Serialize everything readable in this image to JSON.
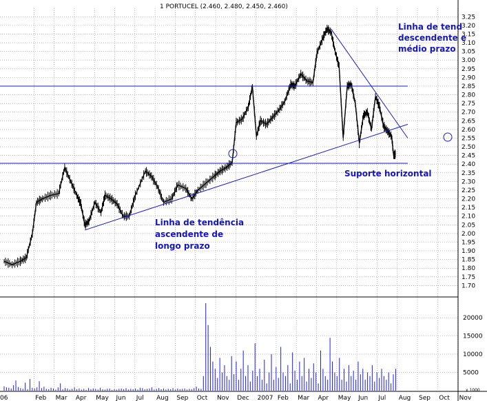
{
  "chart_data": {
    "type": "line",
    "title": "1 PORTUCEL (2.460, 2.480, 2.450, 2.460)",
    "price_axis": {
      "ylim": [
        1.65,
        3.275
      ],
      "ticks": [
        "3.25",
        "3.20",
        "3.15",
        "3.10",
        "3.05",
        "3.00",
        "2.95",
        "2.90",
        "2.85",
        "2.80",
        "2.75",
        "2.70",
        "2.65",
        "2.60",
        "2.55",
        "2.50",
        "2.45",
        "2.40",
        "2.35",
        "2.30",
        "2.25",
        "2.20",
        "2.15",
        "2.10",
        "2.05",
        "2.00",
        "1.95",
        "1.90",
        "1.85",
        "1.80",
        "1.75",
        "1.70"
      ]
    },
    "volume_axis": {
      "ylim": [
        0,
        24000
      ],
      "ticks": [
        "20000",
        "15000",
        "10000",
        "5000"
      ],
      "unit_label": "x 1000"
    },
    "months": [
      "06",
      "Feb",
      "Mar",
      "Apr",
      "May",
      "Jun",
      "Jul",
      "Aug",
      "Sep",
      "Oct",
      "Nov",
      "Dec",
      "2007",
      "Feb",
      "Mar",
      "Apr",
      "May",
      "Jun",
      "Jul",
      "Aug",
      "Sep",
      "Oct",
      "Nov"
    ],
    "price_series": {
      "name": "",
      "points": [
        [
          0,
          1.84
        ],
        [
          0.4,
          1.82
        ],
        [
          0.8,
          1.84
        ],
        [
          1.1,
          1.86
        ],
        [
          1.4,
          2.0
        ],
        [
          1.6,
          2.18
        ],
        [
          1.9,
          2.2
        ],
        [
          2.3,
          2.22
        ],
        [
          2.7,
          2.23
        ],
        [
          3.0,
          2.38
        ],
        [
          3.3,
          2.3
        ],
        [
          3.6,
          2.22
        ],
        [
          3.8,
          2.17
        ],
        [
          4.0,
          2.05
        ],
        [
          4.2,
          2.07
        ],
        [
          4.5,
          2.18
        ],
        [
          4.8,
          2.12
        ],
        [
          5.0,
          2.22
        ],
        [
          5.3,
          2.2
        ],
        [
          5.6,
          2.17
        ],
        [
          5.9,
          2.1
        ],
        [
          6.2,
          2.1
        ],
        [
          6.5,
          2.22
        ],
        [
          7.0,
          2.36
        ],
        [
          7.3,
          2.33
        ],
        [
          7.6,
          2.27
        ],
        [
          7.9,
          2.18
        ],
        [
          8.3,
          2.2
        ],
        [
          8.6,
          2.28
        ],
        [
          9.0,
          2.26
        ],
        [
          9.3,
          2.2
        ],
        [
          9.6,
          2.25
        ],
        [
          10.0,
          2.29
        ],
        [
          10.4,
          2.33
        ],
        [
          10.7,
          2.36
        ],
        [
          11.0,
          2.38
        ],
        [
          11.3,
          2.41
        ],
        [
          11.5,
          2.64
        ],
        [
          11.8,
          2.66
        ],
        [
          12.1,
          2.73
        ],
        [
          12.3,
          2.85
        ],
        [
          12.5,
          2.56
        ],
        [
          12.7,
          2.65
        ],
        [
          13.0,
          2.63
        ],
        [
          13.3,
          2.67
        ],
        [
          13.6,
          2.71
        ],
        [
          13.9,
          2.76
        ],
        [
          14.2,
          2.86
        ],
        [
          14.4,
          2.85
        ],
        [
          14.7,
          2.92
        ],
        [
          15.0,
          2.88
        ],
        [
          15.3,
          2.87
        ],
        [
          15.5,
          3.04
        ],
        [
          15.8,
          3.13
        ],
        [
          16.0,
          3.18
        ],
        [
          16.2,
          3.16
        ],
        [
          16.4,
          3.05
        ],
        [
          16.6,
          2.96
        ],
        [
          16.8,
          2.55
        ],
        [
          17.0,
          2.85
        ],
        [
          17.2,
          2.86
        ],
        [
          17.4,
          2.75
        ],
        [
          17.6,
          2.52
        ],
        [
          17.8,
          2.68
        ],
        [
          18.0,
          2.7
        ],
        [
          18.2,
          2.6
        ],
        [
          18.4,
          2.79
        ],
        [
          18.6,
          2.73
        ],
        [
          18.8,
          2.62
        ],
        [
          19.0,
          2.59
        ],
        [
          19.2,
          2.56
        ],
        [
          19.3,
          2.45
        ],
        [
          19.4,
          2.46
        ]
      ]
    },
    "volume_series": {
      "name": "",
      "values": [
        1200,
        900,
        800,
        600,
        1500,
        2800,
        1000,
        700,
        500,
        2200,
        400,
        3200,
        800,
        600,
        900,
        2600,
        700,
        1100,
        500,
        400,
        800,
        600,
        300,
        900,
        2000,
        400,
        700,
        600,
        300,
        500,
        900,
        400,
        600,
        300,
        500,
        200,
        700,
        400,
        600,
        500,
        300,
        800,
        400,
        300,
        500,
        600,
        200,
        400,
        300,
        500,
        600,
        400,
        700,
        300,
        500,
        400,
        600,
        300,
        800,
        700,
        400,
        500,
        600,
        900,
        300,
        500,
        700,
        400,
        600,
        300,
        500,
        400,
        700,
        300,
        600,
        400,
        500,
        600,
        300,
        500,
        400,
        700,
        1100,
        600,
        500,
        4000,
        24000,
        18000,
        12000,
        8000,
        6000,
        3500,
        9000,
        5000,
        7000,
        4000,
        3000,
        9500,
        4500,
        8000,
        3000,
        6000,
        11000,
        4000,
        7000,
        2500,
        5500,
        13000,
        4000,
        6000,
        3000,
        8500,
        2000,
        5000,
        10000,
        3000,
        6500,
        3500,
        12000,
        5000,
        4000,
        7000,
        2000,
        10500,
        5500,
        3000,
        8000,
        4000,
        9000,
        2500,
        6000,
        3500,
        7500,
        5000,
        2000,
        11000,
        6000,
        4000,
        3000,
        14500,
        8000,
        5000,
        4000,
        9000,
        3000,
        6000,
        2500,
        7000,
        4000,
        5500,
        3000,
        8000,
        4500,
        6000,
        3000,
        5000,
        4000,
        7000,
        2500,
        5000,
        3500,
        6000,
        4000,
        3000,
        5000,
        2000,
        4500,
        6000
      ]
    },
    "trendlines": [
      {
        "name": "long-term-ascending",
        "from": [
          4.0,
          2.02
        ],
        "to": [
          20.0,
          2.63
        ]
      },
      {
        "name": "medium-term-descending",
        "from": [
          16.2,
          3.18
        ],
        "to": [
          20.0,
          2.55
        ]
      },
      {
        "name": "resistance-horizontal",
        "from": [
          -1,
          2.85
        ],
        "to": [
          20.0,
          2.85
        ]
      },
      {
        "name": "support-horizontal",
        "from": [
          -1,
          2.405
        ],
        "to": [
          20.0,
          2.405
        ]
      }
    ],
    "annotations": [
      {
        "lines": [
          "Linha de tendência",
          "ascendente de",
          "longo prazo"
        ]
      },
      {
        "lines": [
          "Linha de tend",
          "descendente e",
          "médio prazo"
        ]
      },
      {
        "lines": [
          "Suporte horizontal"
        ]
      }
    ],
    "grid": true,
    "colors": {
      "price": "#000000",
      "volume": "#1a1aff",
      "trendline": "#1a1acc",
      "grid": "#8a8a8a",
      "annotation": "#1515c8"
    }
  }
}
